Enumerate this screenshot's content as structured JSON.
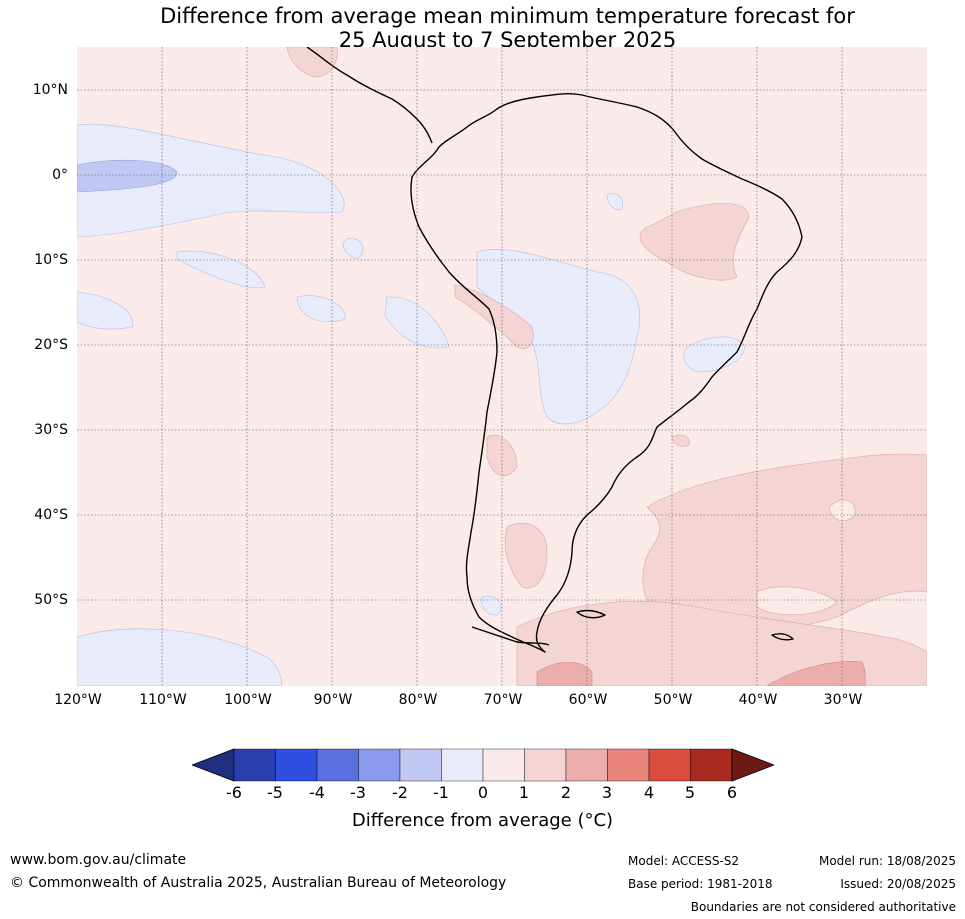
{
  "title": {
    "line1": "Difference from average mean minimum temperature forecast for",
    "line2": "25 August to 7 September 2025"
  },
  "map": {
    "region": "South America",
    "projection": "Equirectangular",
    "lon_range": [
      -120,
      -20
    ],
    "lat_range": [
      -60,
      15
    ],
    "grid_lines": "dotted",
    "lat_labels": [
      {
        "value": 10,
        "text": "10°N"
      },
      {
        "value": 0,
        "text": "0°"
      },
      {
        "value": -10,
        "text": "10°S"
      },
      {
        "value": -20,
        "text": "20°S"
      },
      {
        "value": -30,
        "text": "30°S"
      },
      {
        "value": -40,
        "text": "40°S"
      },
      {
        "value": -50,
        "text": "50°S"
      }
    ],
    "lon_labels": [
      {
        "value": -120,
        "text": "120°W"
      },
      {
        "value": -110,
        "text": "110°W"
      },
      {
        "value": -100,
        "text": "100°W"
      },
      {
        "value": -90,
        "text": "90°W"
      },
      {
        "value": -80,
        "text": "80°W"
      },
      {
        "value": -70,
        "text": "70°W"
      },
      {
        "value": -60,
        "text": "60°W"
      },
      {
        "value": -50,
        "text": "50°W"
      },
      {
        "value": -40,
        "text": "40°W"
      },
      {
        "value": -30,
        "text": "30°W"
      }
    ]
  },
  "colorbar": {
    "ticks": [
      "-6",
      "-5",
      "-4",
      "-3",
      "-2",
      "-1",
      "0",
      "1",
      "2",
      "3",
      "4",
      "5",
      "6"
    ],
    "colors": [
      "#1f2f7e",
      "#2a3fae",
      "#2f4fe0",
      "#5a6fe0",
      "#8a9aee",
      "#c0c8f3",
      "#e8ebfa",
      "#fbeaea",
      "#f4d4d4",
      "#ecaeaa",
      "#e8847c",
      "#d94c3e",
      "#aa2a20",
      "#6e1a14"
    ],
    "label": "Difference from average (°C)"
  },
  "footer": {
    "website": "www.bom.gov.au/climate",
    "copyright": "© Commonwealth of Australia 2025, Australian Bureau of Meteorology",
    "model": "Model: ACCESS-S2",
    "base_period": "Base period: 1981-2018",
    "model_run": "Model run: 18/08/2025",
    "issued": "Issued: 20/08/2025",
    "disclaimer": "Boundaries are not considered authoritative"
  }
}
